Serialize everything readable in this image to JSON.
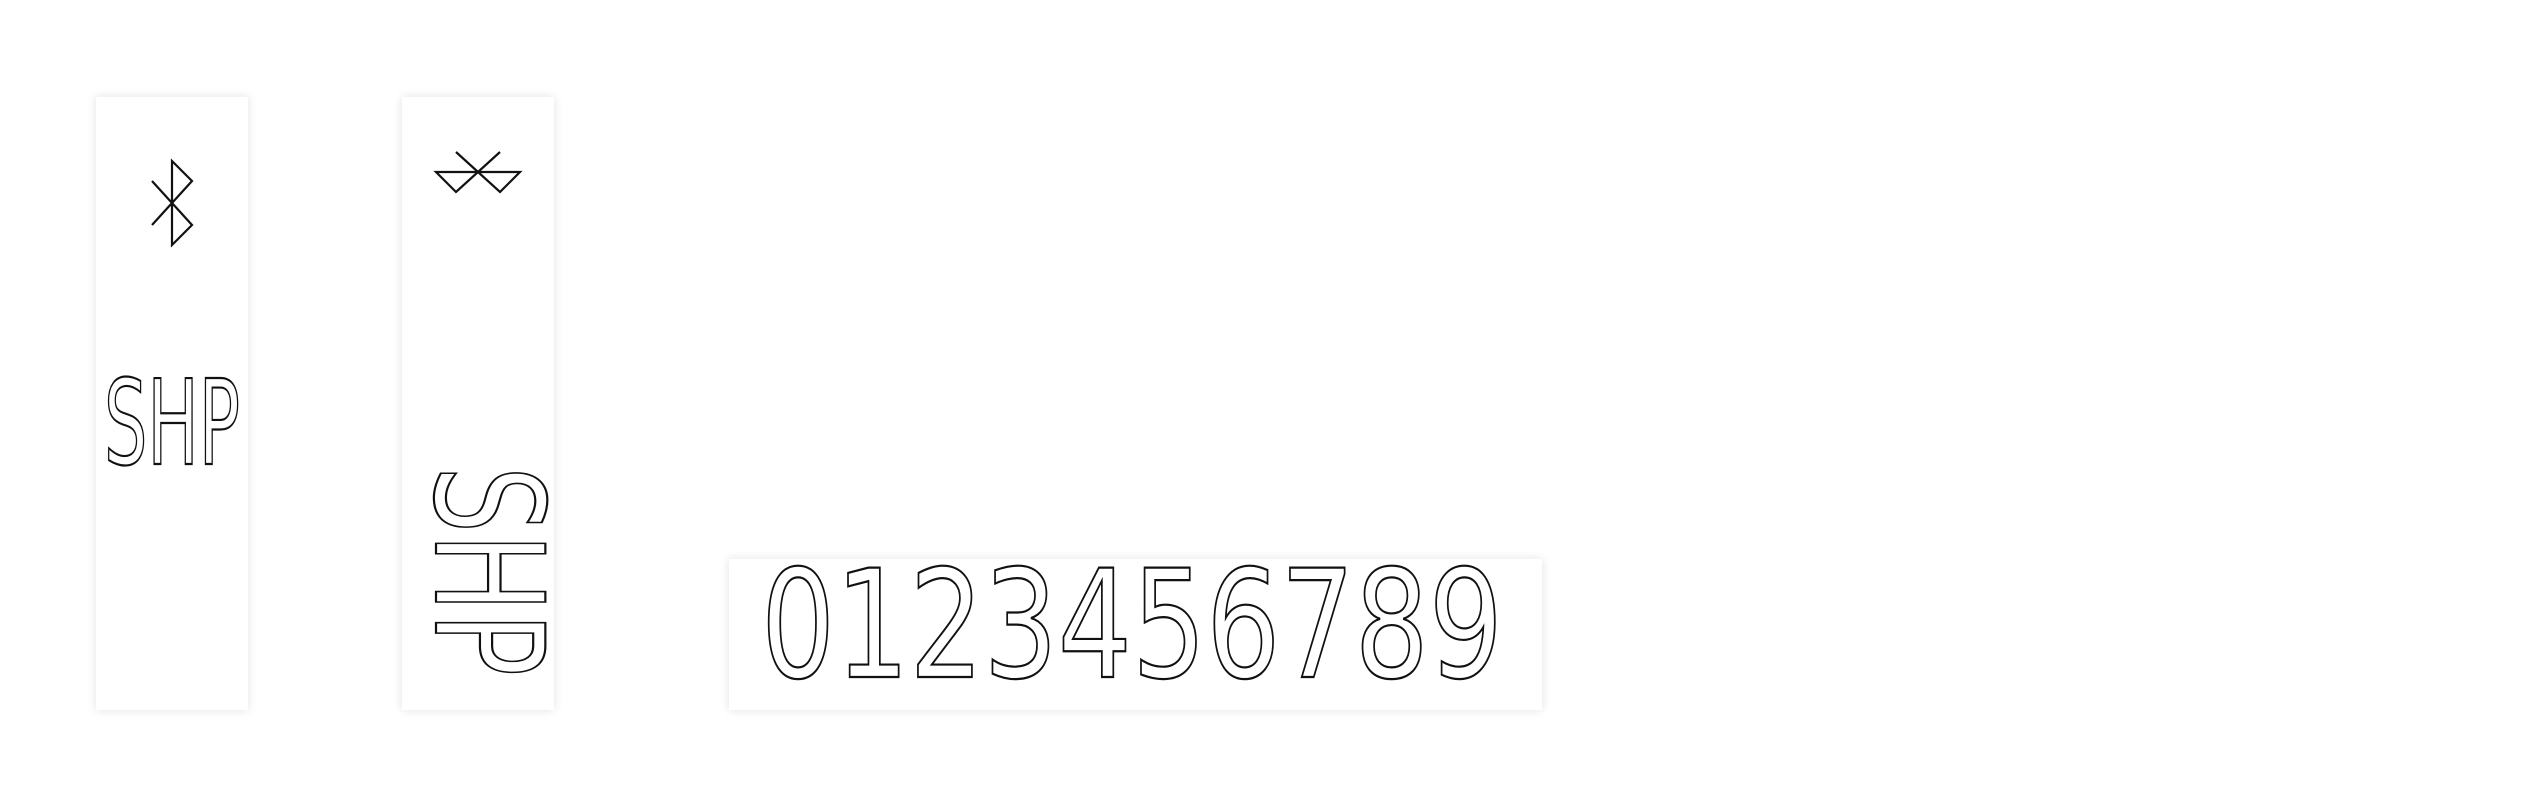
{
  "panels": [
    {
      "label": "SHP"
    },
    {
      "label": "SHP"
    }
  ],
  "digits": "0123456789"
}
